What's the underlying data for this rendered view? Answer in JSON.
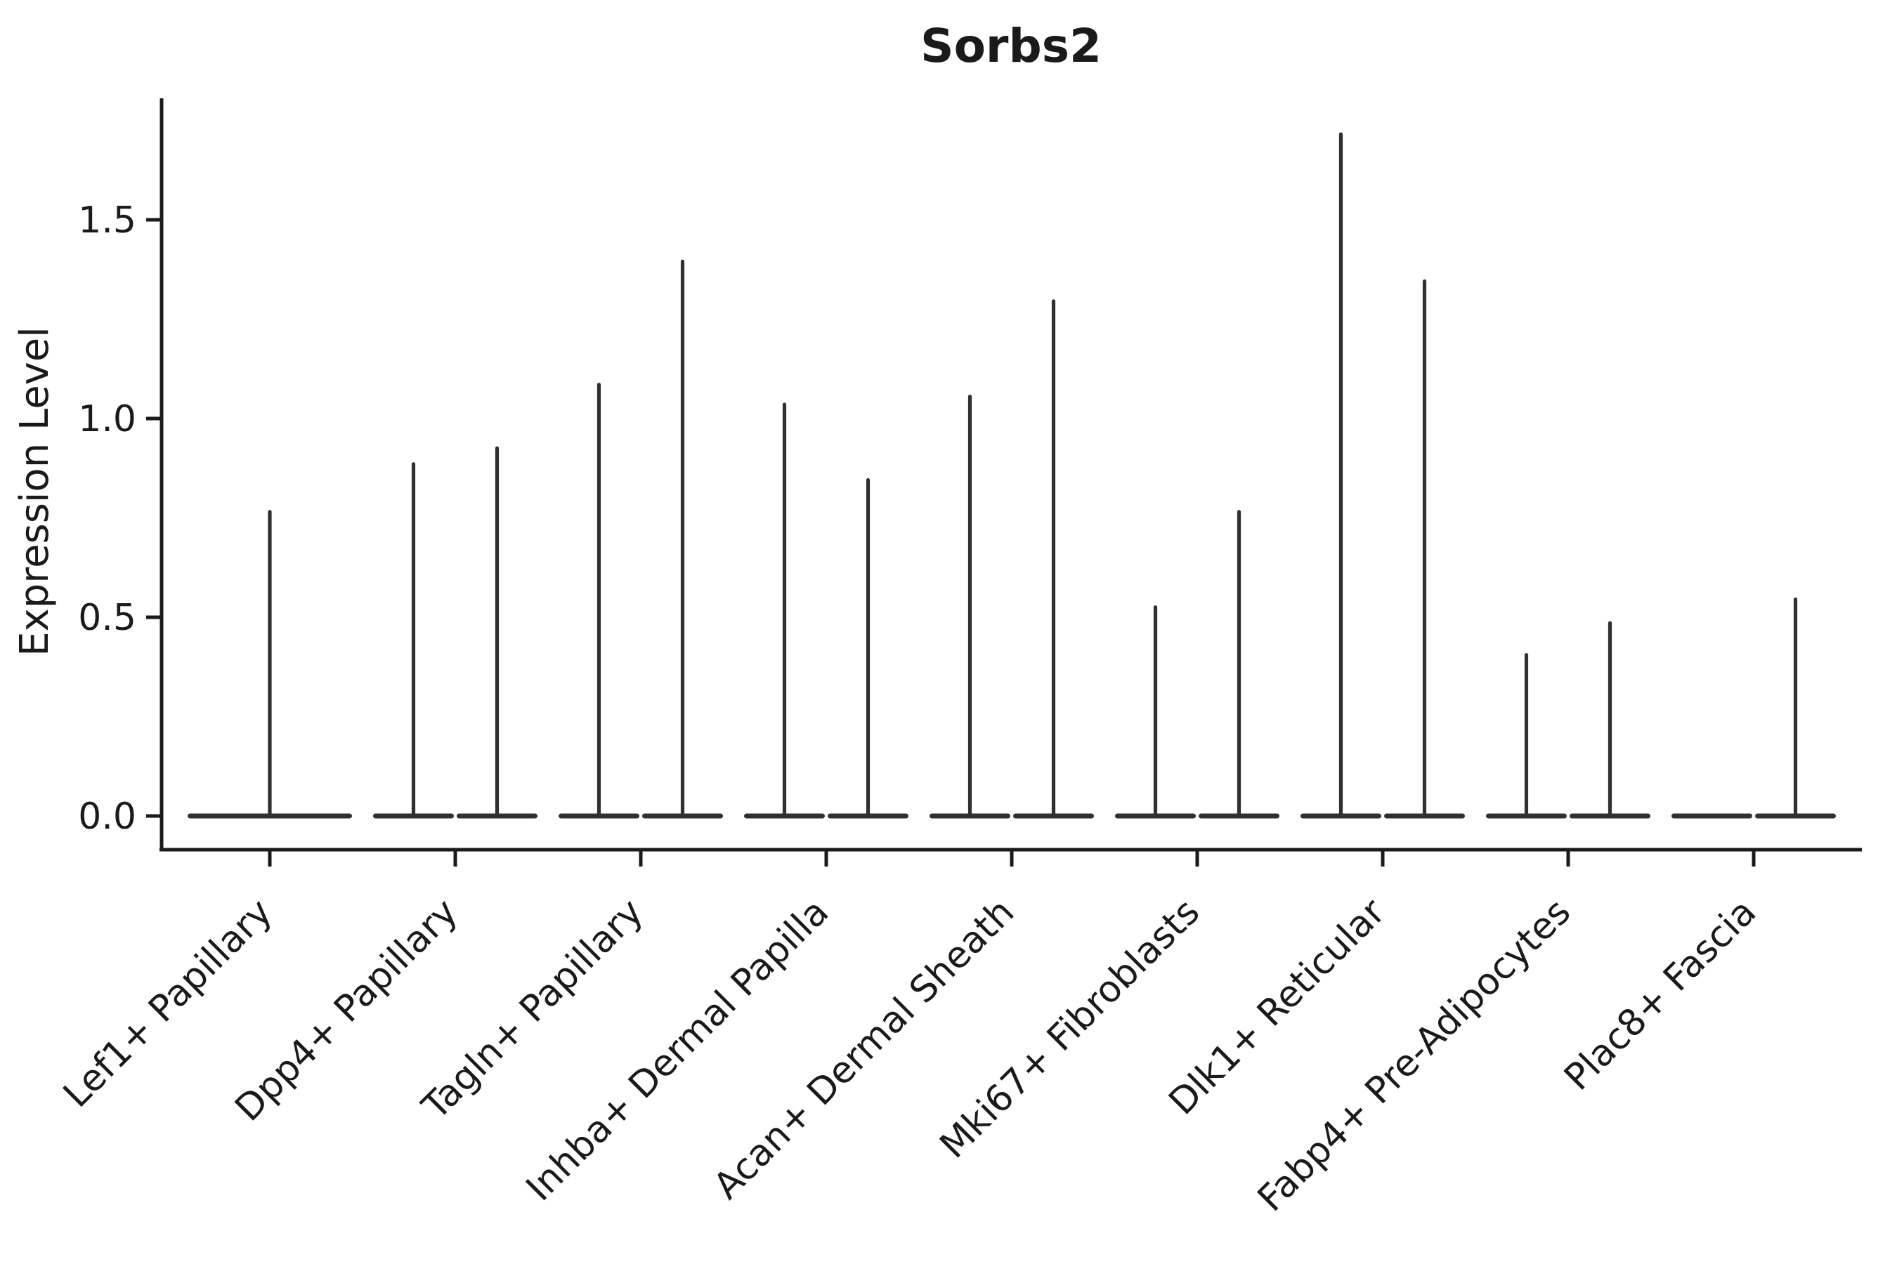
{
  "figure": {
    "title": "Sorbs2",
    "background": "#ffffff",
    "axis_color": "#1a1a1a",
    "violin_color": "#303030"
  },
  "chart_data": {
    "type": "violin",
    "title": "Sorbs2",
    "xlabel": "",
    "ylabel": "Expression Level",
    "grid": false,
    "legend_position": "none",
    "ylim": [
      -0.085,
      1.81
    ],
    "yticks": [
      0.0,
      0.5,
      1.0,
      1.5
    ],
    "ytick_labels": [
      "0.0",
      "0.5",
      "1.0",
      "1.5"
    ],
    "categories": [
      "Lef1+ Papillary",
      "Dpp4+ Papillary",
      "Tagln+ Papillary",
      "Inhba+ Dermal Papilla",
      "Acan+ Dermal Sheath",
      "Mki67+ Fibroblasts",
      "Dlk1+ Reticular",
      "Fabp4+ Pre-Adipocytes",
      "Plac8+ Fascia"
    ],
    "violins": [
      {
        "category": "Lef1+ Papillary",
        "layout": "single",
        "max_values": [
          0.77
        ]
      },
      {
        "category": "Dpp4+ Papillary",
        "layout": "pair",
        "max_values": [
          0.89,
          0.93
        ]
      },
      {
        "category": "Tagln+ Papillary",
        "layout": "pair",
        "max_values": [
          1.09,
          1.4
        ]
      },
      {
        "category": "Inhba+ Dermal Papilla",
        "layout": "pair",
        "max_values": [
          1.04,
          0.85
        ]
      },
      {
        "category": "Acan+ Dermal Sheath",
        "layout": "pair",
        "max_values": [
          1.06,
          1.3
        ]
      },
      {
        "category": "Mki67+ Fibroblasts",
        "layout": "pair",
        "max_values": [
          0.53,
          0.77
        ]
      },
      {
        "category": "Dlk1+ Reticular",
        "layout": "pair",
        "max_values": [
          1.72,
          1.35
        ]
      },
      {
        "category": "Fabp4+ Pre-Adipocytes",
        "layout": "pair",
        "max_values": [
          0.41,
          0.49
        ]
      },
      {
        "category": "Plac8+ Fascia",
        "layout": "pair",
        "max_values": [
          0.0,
          0.55
        ]
      }
    ],
    "violin_shape_note": "Each violin is a wide flat density at expression 0 with a thin spike rising to its max value"
  }
}
